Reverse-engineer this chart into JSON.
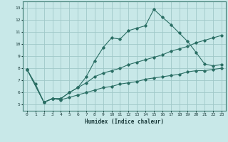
{
  "xlabel": "Humidex (Indice chaleur)",
  "bg_color": "#c8e8e8",
  "grid_color": "#a0c8c8",
  "line_color": "#2a6e64",
  "xlim": [
    -0.5,
    23.5
  ],
  "ylim": [
    4.5,
    13.5
  ],
  "xticks": [
    0,
    1,
    2,
    3,
    4,
    5,
    6,
    7,
    8,
    9,
    10,
    11,
    12,
    13,
    14,
    15,
    16,
    17,
    18,
    19,
    20,
    21,
    22,
    23
  ],
  "yticks": [
    5,
    6,
    7,
    8,
    9,
    10,
    11,
    12,
    13
  ],
  "line1": {
    "x": [
      0,
      1,
      2,
      3,
      4,
      5,
      6,
      7,
      8,
      9,
      10,
      11,
      12,
      13,
      14,
      15,
      16,
      17,
      18,
      19,
      20,
      21,
      22,
      23
    ],
    "y": [
      7.9,
      6.7,
      5.2,
      5.5,
      5.5,
      6.0,
      6.4,
      7.3,
      8.6,
      9.7,
      10.5,
      10.4,
      11.1,
      11.3,
      11.5,
      12.85,
      12.2,
      11.6,
      10.9,
      10.2,
      9.3,
      8.35,
      8.2,
      8.3
    ]
  },
  "line2": {
    "x": [
      0,
      2,
      3,
      4,
      5,
      6,
      7,
      8,
      9,
      10,
      11,
      12,
      13,
      14,
      15,
      16,
      17,
      18,
      19,
      20,
      21,
      22,
      23
    ],
    "y": [
      7.9,
      5.2,
      5.5,
      5.5,
      6.0,
      6.4,
      6.8,
      7.3,
      7.6,
      7.8,
      8.0,
      8.3,
      8.5,
      8.7,
      8.9,
      9.1,
      9.4,
      9.6,
      9.8,
      10.1,
      10.3,
      10.5,
      10.7
    ]
  },
  "line3": {
    "x": [
      0,
      2,
      3,
      4,
      5,
      6,
      7,
      8,
      9,
      10,
      11,
      12,
      13,
      14,
      15,
      16,
      17,
      18,
      19,
      20,
      21,
      22,
      23
    ],
    "y": [
      7.9,
      5.2,
      5.5,
      5.4,
      5.6,
      5.8,
      6.0,
      6.2,
      6.4,
      6.5,
      6.7,
      6.8,
      6.9,
      7.1,
      7.2,
      7.3,
      7.4,
      7.5,
      7.7,
      7.8,
      7.8,
      7.9,
      8.0
    ]
  }
}
